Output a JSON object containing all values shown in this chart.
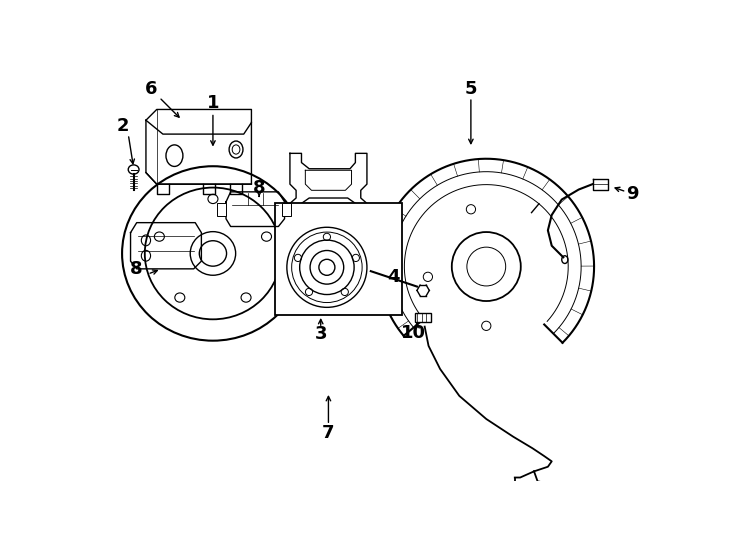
{
  "background_color": "#ffffff",
  "line_color": "#000000",
  "figsize": [
    7.34,
    5.4
  ],
  "dpi": 100,
  "lw": 1.0
}
